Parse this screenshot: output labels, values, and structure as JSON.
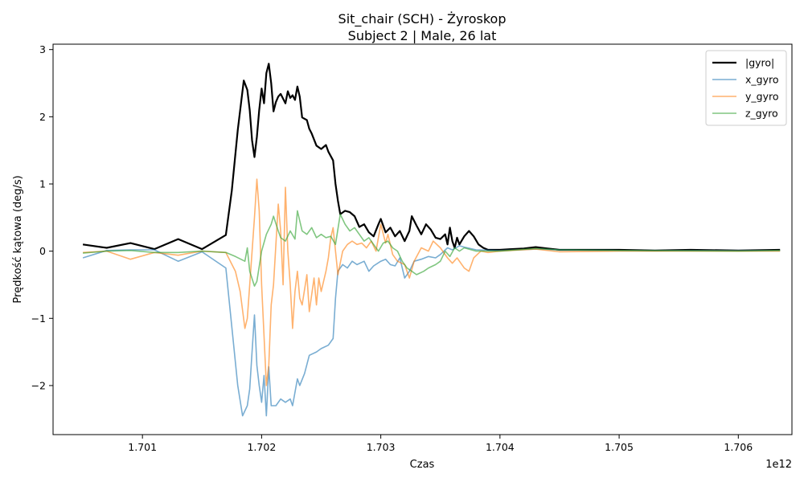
{
  "chart_data": {
    "type": "line",
    "title": "Sit_chair (SCH) - Żyroskop",
    "subtitle": "Subject 2 | Male, 26 lat",
    "xlabel": "Czas",
    "ylabel": "Prędkość kątowa (deg/s)",
    "x_offset_label": "1e12",
    "xlim": [
      1.70025,
      1.70645
    ],
    "ylim": [
      -2.73,
      3.08
    ],
    "x_ticks": [
      1.701,
      1.702,
      1.703,
      1.704,
      1.705,
      1.706
    ],
    "x_tick_labels": [
      "1.701",
      "1.702",
      "1.703",
      "1.704",
      "1.705",
      "1.706"
    ],
    "y_ticks": [
      -2,
      -1,
      0,
      1,
      2,
      3
    ],
    "y_tick_labels": [
      "−2",
      "−1",
      "0",
      "1",
      "2",
      "3"
    ],
    "grid": false,
    "legend_position": "top-right",
    "series": [
      {
        "name": "|gyro|",
        "color": "#000000",
        "width": 2.2,
        "opacity": 1,
        "points": [
          [
            1.7005,
            0.1
          ],
          [
            1.7007,
            0.05
          ],
          [
            1.7009,
            0.12
          ],
          [
            1.7011,
            0.03
          ],
          [
            1.7013,
            0.18
          ],
          [
            1.7015,
            0.03
          ],
          [
            1.7017,
            0.24
          ],
          [
            1.70175,
            0.9
          ],
          [
            1.7018,
            1.8
          ],
          [
            1.70185,
            2.54
          ],
          [
            1.70188,
            2.4
          ],
          [
            1.7019,
            2.1
          ],
          [
            1.70192,
            1.65
          ],
          [
            1.70194,
            1.4
          ],
          [
            1.70196,
            1.7
          ],
          [
            1.70198,
            2.1
          ],
          [
            1.702,
            2.42
          ],
          [
            1.70202,
            2.2
          ],
          [
            1.70204,
            2.65
          ],
          [
            1.70206,
            2.79
          ],
          [
            1.70208,
            2.5
          ],
          [
            1.7021,
            2.08
          ],
          [
            1.70212,
            2.22
          ],
          [
            1.70214,
            2.3
          ],
          [
            1.70216,
            2.34
          ],
          [
            1.7022,
            2.2
          ],
          [
            1.70222,
            2.38
          ],
          [
            1.70224,
            2.28
          ],
          [
            1.70226,
            2.32
          ],
          [
            1.70228,
            2.25
          ],
          [
            1.7023,
            2.45
          ],
          [
            1.70232,
            2.3
          ],
          [
            1.70234,
            1.99
          ],
          [
            1.70238,
            1.95
          ],
          [
            1.7024,
            1.82
          ],
          [
            1.70242,
            1.75
          ],
          [
            1.70246,
            1.57
          ],
          [
            1.7025,
            1.52
          ],
          [
            1.70254,
            1.58
          ],
          [
            1.70256,
            1.48
          ],
          [
            1.7026,
            1.35
          ],
          [
            1.70262,
            1.0
          ],
          [
            1.70264,
            0.75
          ],
          [
            1.70266,
            0.55
          ],
          [
            1.7027,
            0.6
          ],
          [
            1.70274,
            0.58
          ],
          [
            1.70278,
            0.52
          ],
          [
            1.70282,
            0.36
          ],
          [
            1.70286,
            0.4
          ],
          [
            1.7029,
            0.28
          ],
          [
            1.70294,
            0.22
          ],
          [
            1.70298,
            0.4
          ],
          [
            1.703,
            0.48
          ],
          [
            1.70304,
            0.28
          ],
          [
            1.70308,
            0.35
          ],
          [
            1.70312,
            0.22
          ],
          [
            1.70316,
            0.3
          ],
          [
            1.7032,
            0.15
          ],
          [
            1.70324,
            0.3
          ],
          [
            1.70326,
            0.52
          ],
          [
            1.7033,
            0.38
          ],
          [
            1.70334,
            0.25
          ],
          [
            1.70338,
            0.4
          ],
          [
            1.70342,
            0.32
          ],
          [
            1.70346,
            0.2
          ],
          [
            1.7035,
            0.18
          ],
          [
            1.70354,
            0.25
          ],
          [
            1.70356,
            0.1
          ],
          [
            1.70358,
            0.35
          ],
          [
            1.7036,
            0.15
          ],
          [
            1.70362,
            0.05
          ],
          [
            1.70364,
            0.2
          ],
          [
            1.70366,
            0.1
          ],
          [
            1.7037,
            0.22
          ],
          [
            1.70374,
            0.3
          ],
          [
            1.70378,
            0.22
          ],
          [
            1.70382,
            0.1
          ],
          [
            1.70386,
            0.05
          ],
          [
            1.7039,
            0.02
          ],
          [
            1.704,
            0.02
          ],
          [
            1.7041,
            0.03
          ],
          [
            1.7042,
            0.04
          ],
          [
            1.7043,
            0.06
          ],
          [
            1.7044,
            0.04
          ],
          [
            1.7045,
            0.02
          ],
          [
            1.7047,
            0.02
          ],
          [
            1.705,
            0.02
          ],
          [
            1.7053,
            0.01
          ],
          [
            1.7056,
            0.02
          ],
          [
            1.706,
            0.01
          ],
          [
            1.70635,
            0.02
          ]
        ]
      },
      {
        "name": "x_gyro",
        "color": "#1f77b4",
        "width": 1.6,
        "opacity": 0.6,
        "points": [
          [
            1.7005,
            -0.1
          ],
          [
            1.7007,
            0.01
          ],
          [
            1.7009,
            0.02
          ],
          [
            1.7011,
            0.02
          ],
          [
            1.7013,
            -0.15
          ],
          [
            1.7015,
            -0.01
          ],
          [
            1.7017,
            -0.25
          ],
          [
            1.70176,
            -1.3
          ],
          [
            1.7018,
            -2.0
          ],
          [
            1.70184,
            -2.45
          ],
          [
            1.70188,
            -2.3
          ],
          [
            1.7019,
            -2.05
          ],
          [
            1.70192,
            -1.5
          ],
          [
            1.70194,
            -0.95
          ],
          [
            1.70196,
            -1.7
          ],
          [
            1.70198,
            -2.0
          ],
          [
            1.702,
            -2.25
          ],
          [
            1.70202,
            -1.85
          ],
          [
            1.70204,
            -2.45
          ],
          [
            1.70206,
            -1.72
          ],
          [
            1.70208,
            -2.3
          ],
          [
            1.70212,
            -2.3
          ],
          [
            1.70216,
            -2.2
          ],
          [
            1.7022,
            -2.25
          ],
          [
            1.70224,
            -2.2
          ],
          [
            1.70226,
            -2.3
          ],
          [
            1.7023,
            -1.9
          ],
          [
            1.70232,
            -2.0
          ],
          [
            1.70236,
            -1.82
          ],
          [
            1.7024,
            -1.55
          ],
          [
            1.70246,
            -1.5
          ],
          [
            1.7025,
            -1.45
          ],
          [
            1.70256,
            -1.4
          ],
          [
            1.7026,
            -1.3
          ],
          [
            1.70262,
            -0.7
          ],
          [
            1.70264,
            -0.3
          ],
          [
            1.70268,
            -0.2
          ],
          [
            1.70272,
            -0.25
          ],
          [
            1.70276,
            -0.15
          ],
          [
            1.7028,
            -0.2
          ],
          [
            1.70286,
            -0.15
          ],
          [
            1.7029,
            -0.3
          ],
          [
            1.70294,
            -0.22
          ],
          [
            1.703,
            -0.15
          ],
          [
            1.70304,
            -0.12
          ],
          [
            1.70308,
            -0.2
          ],
          [
            1.70312,
            -0.22
          ],
          [
            1.70316,
            -0.1
          ],
          [
            1.7032,
            -0.4
          ],
          [
            1.70324,
            -0.3
          ],
          [
            1.70328,
            -0.15
          ],
          [
            1.70334,
            -0.12
          ],
          [
            1.7034,
            -0.08
          ],
          [
            1.70346,
            -0.1
          ],
          [
            1.7035,
            -0.05
          ],
          [
            1.70356,
            0.05
          ],
          [
            1.7036,
            0.02
          ],
          [
            1.70366,
            0.08
          ],
          [
            1.7037,
            0.06
          ],
          [
            1.7038,
            0.02
          ],
          [
            1.704,
            0.01
          ],
          [
            1.7043,
            0.03
          ],
          [
            1.7045,
            0.02
          ],
          [
            1.705,
            0.01
          ],
          [
            1.706,
            0.01
          ],
          [
            1.70635,
            0.01
          ]
        ]
      },
      {
        "name": "y_gyro",
        "color": "#ff7f0e",
        "width": 1.6,
        "opacity": 0.6,
        "points": [
          [
            1.7005,
            -0.02
          ],
          [
            1.7007,
            0.0
          ],
          [
            1.7009,
            -0.12
          ],
          [
            1.7011,
            -0.02
          ],
          [
            1.7013,
            -0.06
          ],
          [
            1.7015,
            0.0
          ],
          [
            1.7017,
            -0.02
          ],
          [
            1.70178,
            -0.3
          ],
          [
            1.70182,
            -0.6
          ],
          [
            1.70186,
            -1.15
          ],
          [
            1.70188,
            -1.0
          ],
          [
            1.7019,
            -0.5
          ],
          [
            1.70194,
            0.5
          ],
          [
            1.70196,
            1.07
          ],
          [
            1.70198,
            0.6
          ],
          [
            1.702,
            -0.5
          ],
          [
            1.70204,
            -2.0
          ],
          [
            1.70206,
            -1.7
          ],
          [
            1.70208,
            -0.8
          ],
          [
            1.7021,
            -0.5
          ],
          [
            1.70214,
            0.7
          ],
          [
            1.70216,
            0.3
          ],
          [
            1.70218,
            -0.5
          ],
          [
            1.7022,
            0.95
          ],
          [
            1.70222,
            0.0
          ],
          [
            1.70224,
            -0.5
          ],
          [
            1.70226,
            -1.15
          ],
          [
            1.70228,
            -0.6
          ],
          [
            1.7023,
            -0.3
          ],
          [
            1.70232,
            -0.7
          ],
          [
            1.70234,
            -0.8
          ],
          [
            1.70238,
            -0.35
          ],
          [
            1.7024,
            -0.9
          ],
          [
            1.70244,
            -0.4
          ],
          [
            1.70246,
            -0.8
          ],
          [
            1.70248,
            -0.4
          ],
          [
            1.7025,
            -0.6
          ],
          [
            1.70254,
            -0.3
          ],
          [
            1.70256,
            -0.1
          ],
          [
            1.70258,
            0.2
          ],
          [
            1.7026,
            0.35
          ],
          [
            1.70264,
            -0.35
          ],
          [
            1.70268,
            0.0
          ],
          [
            1.70272,
            0.1
          ],
          [
            1.70276,
            0.15
          ],
          [
            1.7028,
            0.1
          ],
          [
            1.70284,
            0.12
          ],
          [
            1.70288,
            0.05
          ],
          [
            1.70292,
            0.15
          ],
          [
            1.70296,
            0.0
          ],
          [
            1.703,
            0.4
          ],
          [
            1.70304,
            0.12
          ],
          [
            1.70306,
            0.25
          ],
          [
            1.7031,
            -0.05
          ],
          [
            1.70314,
            -0.15
          ],
          [
            1.7032,
            -0.2
          ],
          [
            1.70324,
            -0.4
          ],
          [
            1.70328,
            -0.15
          ],
          [
            1.70334,
            0.05
          ],
          [
            1.7034,
            0.0
          ],
          [
            1.70344,
            0.15
          ],
          [
            1.7035,
            0.05
          ],
          [
            1.70356,
            -0.1
          ],
          [
            1.7036,
            -0.18
          ],
          [
            1.70364,
            -0.1
          ],
          [
            1.7037,
            -0.25
          ],
          [
            1.70374,
            -0.3
          ],
          [
            1.70378,
            -0.1
          ],
          [
            1.70384,
            0.0
          ],
          [
            1.7039,
            -0.02
          ],
          [
            1.704,
            0.0
          ],
          [
            1.7043,
            0.03
          ],
          [
            1.7045,
            -0.01
          ],
          [
            1.705,
            0.0
          ],
          [
            1.706,
            0.0
          ],
          [
            1.70635,
            0.0
          ]
        ]
      },
      {
        "name": "z_gyro",
        "color": "#2ca02c",
        "width": 1.6,
        "opacity": 0.6,
        "points": [
          [
            1.7005,
            -0.03
          ],
          [
            1.7007,
            0.0
          ],
          [
            1.7009,
            0.01
          ],
          [
            1.7011,
            -0.02
          ],
          [
            1.7013,
            -0.02
          ],
          [
            1.7015,
            0.0
          ],
          [
            1.7017,
            -0.02
          ],
          [
            1.70178,
            -0.08
          ],
          [
            1.70186,
            -0.15
          ],
          [
            1.70188,
            0.05
          ],
          [
            1.7019,
            -0.3
          ],
          [
            1.70194,
            -0.52
          ],
          [
            1.70196,
            -0.45
          ],
          [
            1.702,
            0.0
          ],
          [
            1.70204,
            0.25
          ],
          [
            1.70208,
            0.4
          ],
          [
            1.7021,
            0.52
          ],
          [
            1.70214,
            0.3
          ],
          [
            1.70216,
            0.2
          ],
          [
            1.7022,
            0.15
          ],
          [
            1.70224,
            0.3
          ],
          [
            1.70228,
            0.18
          ],
          [
            1.7023,
            0.6
          ],
          [
            1.70234,
            0.3
          ],
          [
            1.70238,
            0.25
          ],
          [
            1.70242,
            0.35
          ],
          [
            1.70246,
            0.2
          ],
          [
            1.7025,
            0.25
          ],
          [
            1.70254,
            0.2
          ],
          [
            1.70258,
            0.22
          ],
          [
            1.70262,
            0.1
          ],
          [
            1.70266,
            0.55
          ],
          [
            1.7027,
            0.4
          ],
          [
            1.70274,
            0.3
          ],
          [
            1.70278,
            0.35
          ],
          [
            1.70282,
            0.25
          ],
          [
            1.70286,
            0.15
          ],
          [
            1.7029,
            0.2
          ],
          [
            1.70294,
            0.1
          ],
          [
            1.70298,
            0.0
          ],
          [
            1.70302,
            0.12
          ],
          [
            1.70306,
            0.15
          ],
          [
            1.7031,
            0.05
          ],
          [
            1.70314,
            0.0
          ],
          [
            1.70318,
            -0.15
          ],
          [
            1.70322,
            -0.25
          ],
          [
            1.70326,
            -0.3
          ],
          [
            1.7033,
            -0.35
          ],
          [
            1.70336,
            -0.3
          ],
          [
            1.7034,
            -0.25
          ],
          [
            1.70346,
            -0.2
          ],
          [
            1.7035,
            -0.15
          ],
          [
            1.70354,
            0.0
          ],
          [
            1.70358,
            -0.08
          ],
          [
            1.70362,
            0.05
          ],
          [
            1.70366,
            0.0
          ],
          [
            1.7037,
            0.05
          ],
          [
            1.70376,
            0.02
          ],
          [
            1.7038,
            0.0
          ],
          [
            1.704,
            0.0
          ],
          [
            1.7043,
            0.04
          ],
          [
            1.7045,
            0.02
          ],
          [
            1.705,
            0.01
          ],
          [
            1.706,
            0.0
          ],
          [
            1.70635,
            0.01
          ]
        ]
      }
    ]
  }
}
